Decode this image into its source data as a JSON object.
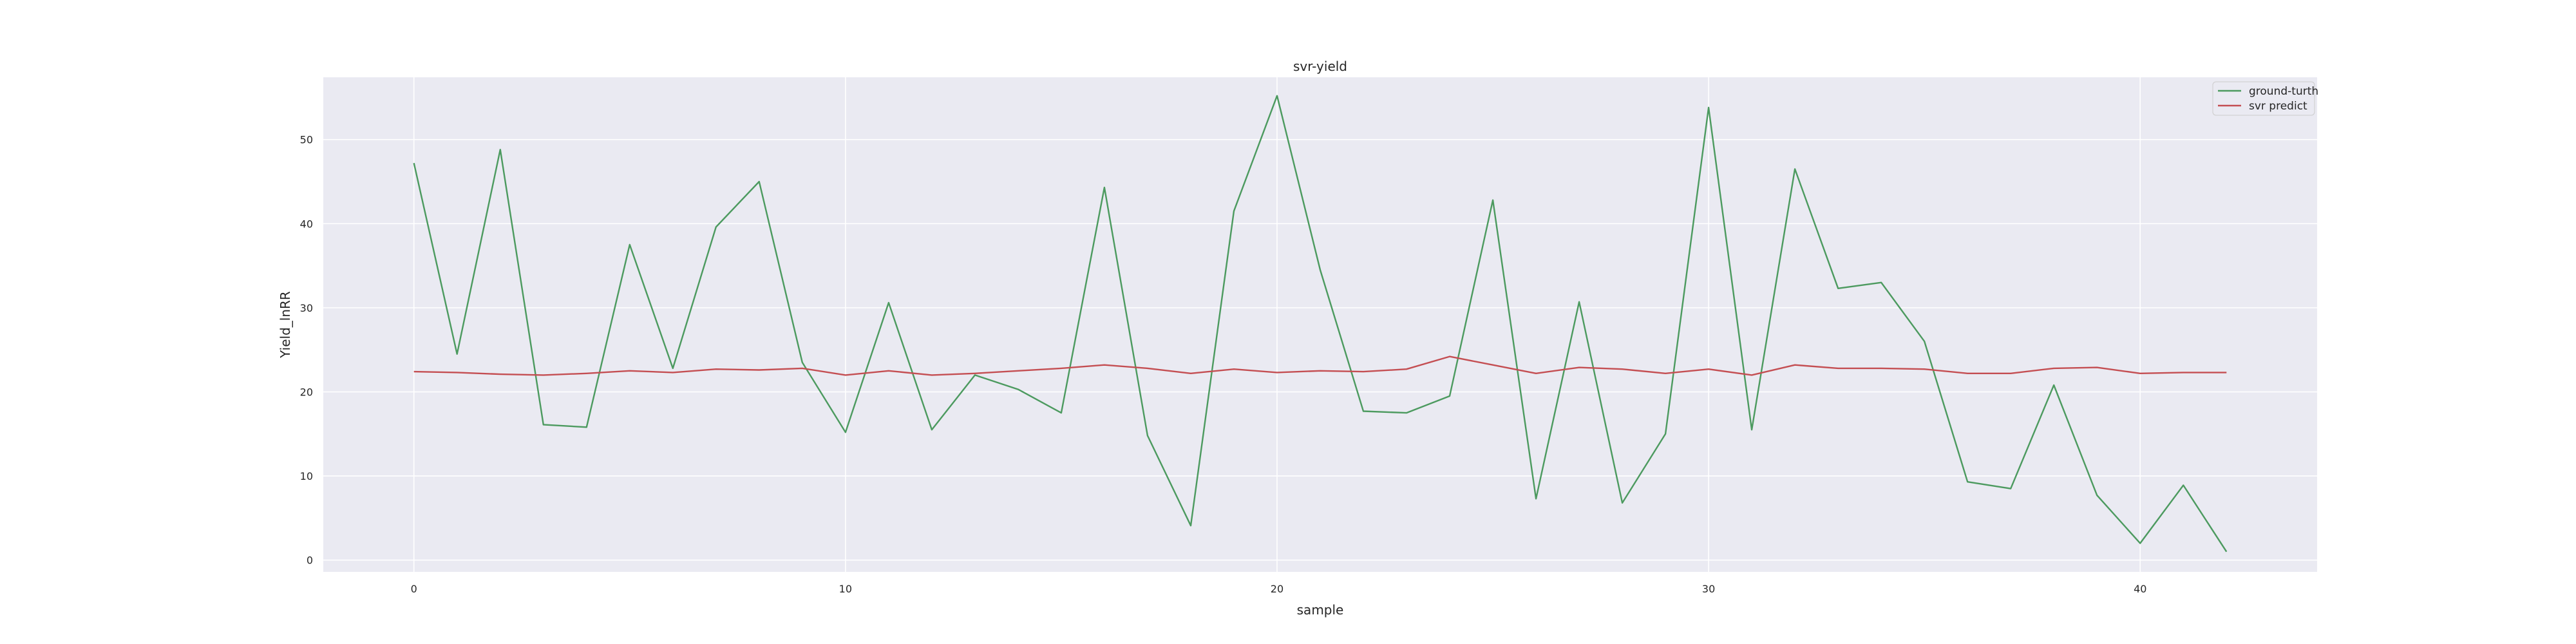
{
  "chart_data": {
    "type": "line",
    "title": "svr-yield",
    "xlabel": "sample",
    "ylabel": "Yield_lnRR",
    "xlim": [
      -2.1,
      44.1
    ],
    "ylim": [
      -1.4,
      57.4
    ],
    "xticks": [
      0,
      10,
      20,
      30,
      40
    ],
    "yticks": [
      0,
      10,
      20,
      30,
      40,
      50
    ],
    "grid": true,
    "legend_position": "top-right",
    "background": "#eaeaf2",
    "x": [
      0,
      1,
      2,
      3,
      4,
      5,
      6,
      7,
      8,
      9,
      10,
      11,
      12,
      13,
      14,
      15,
      16,
      17,
      18,
      19,
      20,
      21,
      22,
      23,
      24,
      25,
      26,
      27,
      28,
      29,
      30,
      31,
      32,
      33,
      34,
      35,
      36,
      37,
      38,
      39,
      40,
      41,
      42
    ],
    "series": [
      {
        "name": "ground-turth",
        "color": "#4c9a5f",
        "values": [
          47.2,
          24.5,
          48.8,
          16.1,
          15.8,
          37.5,
          22.8,
          39.6,
          45.0,
          23.5,
          15.2,
          30.6,
          15.5,
          22.0,
          20.3,
          17.5,
          44.3,
          14.8,
          4.1,
          41.5,
          55.2,
          34.5,
          17.7,
          17.5,
          19.5,
          42.8,
          7.3,
          30.7,
          6.8,
          15.0,
          53.8,
          15.5,
          46.5,
          32.3,
          33.0,
          26.0,
          9.3,
          8.5,
          20.8,
          7.7,
          2.0,
          8.9,
          1.0
        ]
      },
      {
        "name": "svr predict",
        "color": "#c44e52",
        "values": [
          22.4,
          22.3,
          22.1,
          22.0,
          22.2,
          22.5,
          22.3,
          22.7,
          22.6,
          22.8,
          22.0,
          22.5,
          22.0,
          22.2,
          22.5,
          22.8,
          23.2,
          22.8,
          22.2,
          22.7,
          22.3,
          22.5,
          22.4,
          22.7,
          24.2,
          23.2,
          22.2,
          22.9,
          22.7,
          22.2,
          22.7,
          22.0,
          23.2,
          22.8,
          22.8,
          22.7,
          22.2,
          22.2,
          22.8,
          22.9,
          22.2,
          22.3,
          22.3
        ]
      }
    ]
  }
}
